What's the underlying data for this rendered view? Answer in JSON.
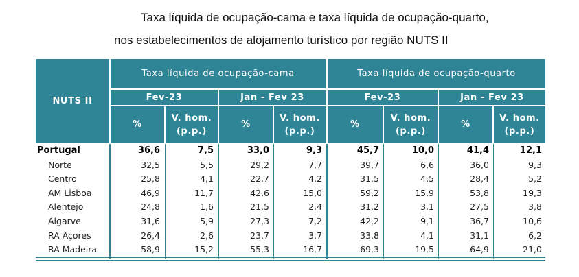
{
  "title": {
    "line1": "Taxa líquida de ocupação-cama e taxa líquida de ocupação-quarto,",
    "line2": "nos estabelecimentos de alojamento turístico por região NUTS II"
  },
  "header": {
    "region_label": "NUTS II",
    "group_cama": "Taxa líquida de ocupação-cama",
    "group_quarto": "Taxa líquida de ocupação-quarto",
    "period_1": "Fev-23",
    "period_2": "Jan - Fev 23",
    "pct": "%",
    "vhom_1": "V. hom.",
    "vhom_2": "(p.p.)"
  },
  "rows": [
    {
      "region": "Portugal",
      "values": [
        "36,6",
        "7,5",
        "33,0",
        "9,3",
        "45,7",
        "10,0",
        "41,4",
        "12,1"
      ]
    },
    {
      "region": "Norte",
      "values": [
        "32,5",
        "5,5",
        "29,2",
        "7,7",
        "39,7",
        "6,6",
        "36,0",
        "9,3"
      ]
    },
    {
      "region": "Centro",
      "values": [
        "25,8",
        "4,1",
        "22,7",
        "4,2",
        "31,5",
        "4,5",
        "28,4",
        "5,2"
      ]
    },
    {
      "region": "AM Lisboa",
      "values": [
        "46,9",
        "11,7",
        "42,6",
        "15,0",
        "59,2",
        "15,9",
        "53,8",
        "19,3"
      ]
    },
    {
      "region": "Alentejo",
      "values": [
        "24,8",
        "1,6",
        "21,5",
        "2,4",
        "31,2",
        "3,1",
        "27,5",
        "3,8"
      ]
    },
    {
      "region": "Algarve",
      "values": [
        "31,6",
        "5,9",
        "27,3",
        "7,2",
        "42,2",
        "9,1",
        "36,7",
        "10,6"
      ]
    },
    {
      "region": "RA Açores",
      "values": [
        "26,4",
        "2,6",
        "23,7",
        "3,7",
        "33,8",
        "4,1",
        "31,1",
        "6,2"
      ]
    },
    {
      "region": "RA Madeira",
      "values": [
        "58,9",
        "15,2",
        "55,3",
        "16,7",
        "69,3",
        "19,5",
        "64,9",
        "21,0"
      ]
    }
  ]
}
